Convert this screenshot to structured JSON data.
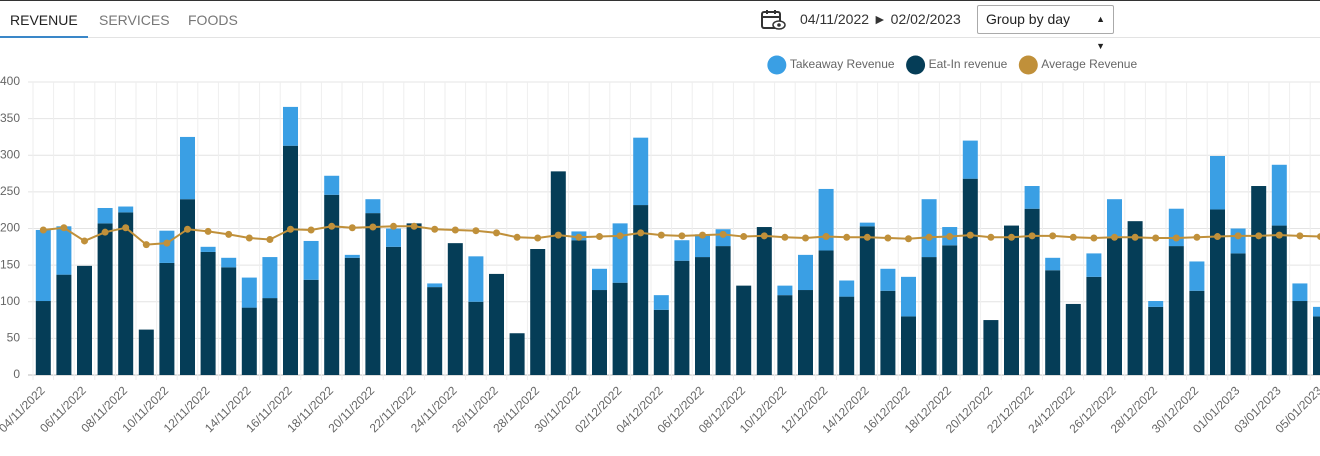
{
  "ui": {
    "tabs": [
      "REVENUE",
      "SERVICES",
      "FOODS"
    ],
    "active_tab": 0,
    "date_range": "04/11/2022 ► 02/02/2023",
    "group_select": "Group by day"
  },
  "chart_data": {
    "type": "bar",
    "stacked": true,
    "grid": true,
    "legend": "top",
    "categories": [
      "04/11/2022",
      null,
      "06/11/2022",
      null,
      "08/11/2022",
      null,
      "10/11/2022",
      null,
      "12/11/2022",
      null,
      "14/11/2022",
      null,
      "16/11/2022",
      null,
      "18/11/2022",
      null,
      "20/11/2022",
      null,
      "22/11/2022",
      null,
      "24/11/2022",
      null,
      "26/11/2022",
      null,
      "28/11/2022",
      null,
      "30/11/2022",
      null,
      "02/12/2022",
      null,
      "04/12/2022",
      null,
      "06/12/2022",
      null,
      "08/12/2022",
      null,
      "10/12/2022",
      null,
      "12/12/2022",
      null,
      "14/12/2022",
      null,
      "16/12/2022",
      null,
      "18/12/2022",
      null,
      "20/12/2022",
      null,
      "22/12/2022",
      null,
      "24/12/2022",
      null,
      "26/12/2022",
      null,
      "28/12/2022",
      null,
      "30/12/2022",
      null,
      "01/01/2023",
      null,
      "03/01/2023",
      null,
      "05/01/2023"
    ],
    "series": [
      {
        "name": "Takeaway Revenue",
        "color": "#3a9fe4",
        "type": "bar",
        "values": [
          97,
          66,
          0,
          21,
          8,
          0,
          44,
          85,
          7,
          13,
          41,
          56,
          53,
          53,
          26,
          4,
          19,
          25,
          0,
          5,
          0,
          62,
          0,
          0,
          0,
          0,
          12,
          29,
          81,
          92,
          20,
          28,
          31,
          23,
          0,
          0,
          13,
          48,
          84,
          22,
          5,
          30,
          54,
          79,
          25,
          52,
          0,
          0,
          31,
          17,
          0,
          32,
          52,
          0,
          8,
          51,
          40,
          73,
          34,
          0,
          83,
          24,
          13
        ]
      },
      {
        "name": "Eat-In revenue",
        "color": "#053d57",
        "type": "bar",
        "values": [
          101,
          137,
          149,
          207,
          222,
          62,
          153,
          240,
          168,
          147,
          92,
          105,
          313,
          130,
          246,
          160,
          221,
          175,
          207,
          120,
          180,
          100,
          138,
          57,
          172,
          278,
          184,
          116,
          126,
          232,
          89,
          156,
          161,
          176,
          122,
          202,
          109,
          116,
          170,
          107,
          203,
          115,
          80,
          161,
          177,
          268,
          75,
          204,
          227,
          143,
          97,
          134,
          188,
          210,
          93,
          176,
          115,
          226,
          166,
          258,
          204,
          101,
          80
        ]
      },
      {
        "name": "Average Revenue",
        "color": "#c0903a",
        "type": "line",
        "values": [
          198,
          201,
          183,
          195,
          201,
          178,
          180,
          199,
          196,
          192,
          187,
          185,
          199,
          198,
          203,
          201,
          202,
          203,
          203,
          199,
          198,
          197,
          194,
          188,
          187,
          191,
          188,
          189,
          190,
          194,
          191,
          190,
          191,
          192,
          189,
          190,
          188,
          187,
          189,
          188,
          188,
          187,
          186,
          188,
          189,
          191,
          188,
          188,
          190,
          190,
          188,
          187,
          188,
          188,
          187,
          187,
          188,
          189,
          190,
          190,
          191,
          190,
          189
        ]
      }
    ],
    "ylim": [
      0,
      400
    ],
    "yticks": [
      0,
      50,
      100,
      150,
      200,
      250,
      300,
      350,
      400
    ]
  }
}
